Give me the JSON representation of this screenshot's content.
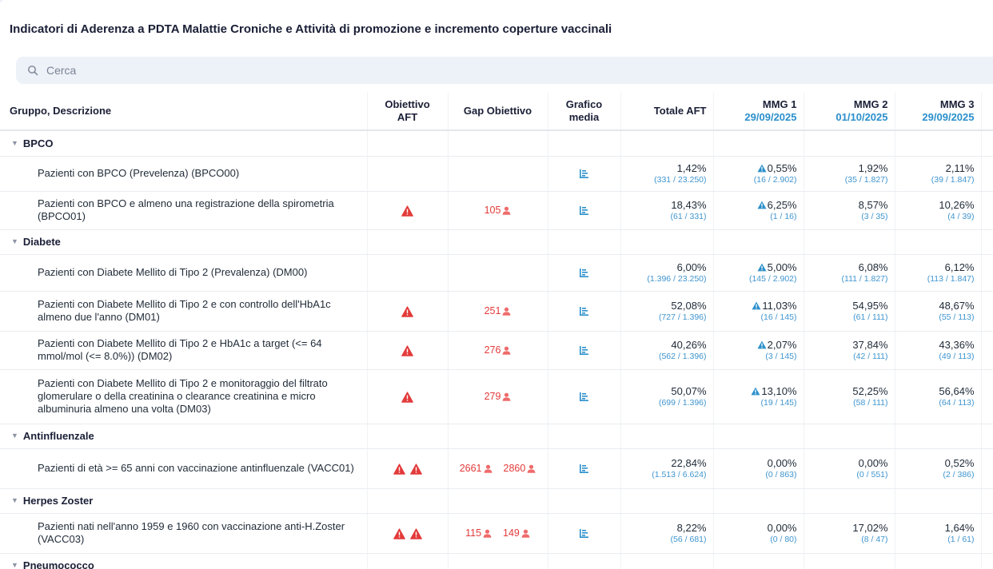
{
  "page": {
    "title": "Indicatori di Aderenza a PDTA Malattie Croniche e Attività di promozione e incremento coperture vaccinali"
  },
  "search": {
    "placeholder": "Cerca"
  },
  "headers": {
    "desc": "Gruppo, Descrizione",
    "obj_line1": "Obiettivo",
    "obj_line2": "AFT",
    "gap": "Gap Obiettivo",
    "graf_line1": "Grafico",
    "graf_line2": "media",
    "totale": "Totale AFT",
    "mmg1_name": "MMG 1",
    "mmg1_date": "29/09/2025",
    "mmg2_name": "MMG 2",
    "mmg2_date": "01/10/2025",
    "mmg3_name": "MMG 3",
    "mmg3_date": "29/09/2025"
  },
  "groups": [
    {
      "name": "BPCO"
    },
    {
      "name": "Diabete"
    },
    {
      "name": "Antinfluenzale"
    },
    {
      "name": "Herpes Zoster"
    },
    {
      "name": "Pneumococco"
    }
  ],
  "rows": [
    {
      "desc": "Pazienti con BPCO (Prevelenza) (BPCO00)",
      "gaps": [],
      "totale": {
        "pct": "1,42%",
        "frac": "(331 / 23.250)"
      },
      "mmg1": {
        "pct": "0,55%",
        "frac": "(16 / 2.902)",
        "alert": true
      },
      "mmg2": {
        "pct": "1,92%",
        "frac": "(35 / 1.827)"
      },
      "mmg3": {
        "pct": "2,11%",
        "frac": "(39 / 1.847)"
      }
    },
    {
      "desc": "Pazienti con BPCO e almeno una registrazione della spirometria (BPCO01)",
      "gaps": [
        "105"
      ],
      "totale": {
        "pct": "18,43%",
        "frac": "(61 / 331)"
      },
      "mmg1": {
        "pct": "6,25%",
        "frac": "(1 / 16)",
        "alert": true
      },
      "mmg2": {
        "pct": "8,57%",
        "frac": "(3 / 35)"
      },
      "mmg3": {
        "pct": "10,26%",
        "frac": "(4 / 39)"
      }
    },
    {
      "desc": "Pazienti con Diabete Mellito di Tipo 2 (Prevalenza) (DM00)",
      "gaps": [],
      "totale": {
        "pct": "6,00%",
        "frac": "(1.396 / 23.250)"
      },
      "mmg1": {
        "pct": "5,00%",
        "frac": "(145 / 2.902)",
        "alert": true
      },
      "mmg2": {
        "pct": "6,08%",
        "frac": "(111 / 1.827)"
      },
      "mmg3": {
        "pct": "6,12%",
        "frac": "(113 / 1.847)"
      }
    },
    {
      "desc": "Pazienti con Diabete Mellito di Tipo 2 e con controllo dell'HbA1c almeno due l'anno (DM01)",
      "gaps": [
        "251"
      ],
      "totale": {
        "pct": "52,08%",
        "frac": "(727 / 1.396)"
      },
      "mmg1": {
        "pct": "11,03%",
        "frac": "(16 / 145)",
        "alert": true
      },
      "mmg2": {
        "pct": "54,95%",
        "frac": "(61 / 111)"
      },
      "mmg3": {
        "pct": "48,67%",
        "frac": "(55 / 113)"
      }
    },
    {
      "desc": "Pazienti con Diabete Mellito di Tipo 2 e HbA1c a target (<= 64 mmol/mol (<= 8.0%)) (DM02)",
      "gaps": [
        "276"
      ],
      "totale": {
        "pct": "40,26%",
        "frac": "(562 / 1.396)"
      },
      "mmg1": {
        "pct": "2,07%",
        "frac": "(3 / 145)",
        "alert": true
      },
      "mmg2": {
        "pct": "37,84%",
        "frac": "(42 / 111)"
      },
      "mmg3": {
        "pct": "43,36%",
        "frac": "(49 / 113)"
      }
    },
    {
      "desc": "Pazienti con Diabete Mellito di Tipo 2 e monitoraggio del filtrato glomerulare o della creatinina o clearance creatinina e micro albuminuria almeno una volta (DM03)",
      "gaps": [
        "279"
      ],
      "totale": {
        "pct": "50,07%",
        "frac": "(699 / 1.396)"
      },
      "mmg1": {
        "pct": "13,10%",
        "frac": "(19 / 145)",
        "alert": true
      },
      "mmg2": {
        "pct": "52,25%",
        "frac": "(58 / 111)"
      },
      "mmg3": {
        "pct": "56,64%",
        "frac": "(64 / 113)"
      }
    },
    {
      "desc": "Pazienti di età >= 65 anni con vaccinazione antinfluenzale (VACC01)",
      "gaps": [
        "2661",
        "2860"
      ],
      "totale": {
        "pct": "22,84%",
        "frac": "(1.513 / 6.624)"
      },
      "mmg1": {
        "pct": "0,00%",
        "frac": "(0 / 863)",
        "alert": false
      },
      "mmg2": {
        "pct": "0,00%",
        "frac": "(0 / 551)"
      },
      "mmg3": {
        "pct": "0,52%",
        "frac": "(2 / 386)"
      }
    },
    {
      "desc": "Pazienti nati nell'anno 1959 e 1960 con vaccinazione anti-H.Zoster (VACC03)",
      "gaps": [
        "115",
        "149"
      ],
      "totale": {
        "pct": "8,22%",
        "frac": "(56 / 681)"
      },
      "mmg1": {
        "pct": "0,00%",
        "frac": "(0 / 80)",
        "alert": false
      },
      "mmg2": {
        "pct": "17,02%",
        "frac": "(8 / 47)"
      },
      "mmg3": {
        "pct": "1,64%",
        "frac": "(1 / 61)"
      }
    }
  ],
  "colors": {
    "accent": "#2b8fcb",
    "warning": "#e33a3a",
    "fraction": "#3f95cf"
  },
  "icons": {
    "search": "search-icon",
    "warning": "warning-icon",
    "person": "person-icon",
    "chart": "chart-icon",
    "alert_triangle": "alert-triangle-icon",
    "caret": "caret-down-icon"
  }
}
